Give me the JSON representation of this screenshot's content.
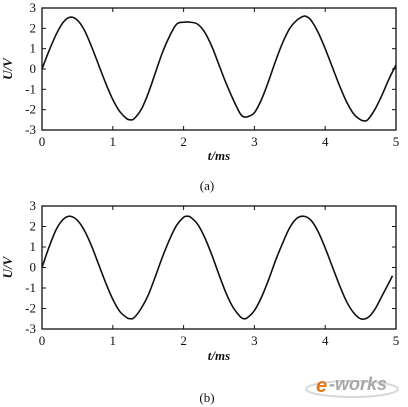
{
  "chart_data": [
    {
      "type": "line",
      "panel_label": "(a)",
      "xlabel": "t/ms",
      "ylabel": "U/V",
      "xlim": [
        0,
        5
      ],
      "ylim": [
        -3,
        3
      ],
      "xticks": [
        "0",
        "1",
        "2",
        "3",
        "4",
        "5"
      ],
      "yticks": [
        "3",
        "2",
        "1",
        "0",
        "-1",
        "-2",
        "-3"
      ],
      "grid": false,
      "series": [
        {
          "x": [
            0,
            0.1,
            0.2,
            0.3,
            0.4,
            0.5,
            0.6,
            0.7,
            0.8,
            0.9,
            1.0,
            1.1,
            1.2,
            1.25,
            1.3,
            1.4,
            1.5,
            1.6,
            1.7,
            1.8,
            1.9,
            2.0,
            2.1,
            2.2,
            2.3,
            2.4,
            2.5,
            2.6,
            2.7,
            2.8,
            2.85,
            2.9,
            3.0,
            3.1,
            3.2,
            3.3,
            3.4,
            3.5,
            3.6,
            3.7,
            3.75,
            3.8,
            3.9,
            4.0,
            4.1,
            4.2,
            4.3,
            4.4,
            4.5,
            4.55,
            4.6,
            4.7,
            4.8,
            4.9,
            5.0
          ],
          "values": [
            0.0,
            0.9,
            1.7,
            2.3,
            2.55,
            2.4,
            1.9,
            1.1,
            0.2,
            -0.7,
            -1.5,
            -2.1,
            -2.45,
            -2.5,
            -2.45,
            -2.0,
            -1.2,
            -0.2,
            0.8,
            1.6,
            2.2,
            2.3,
            2.3,
            2.2,
            1.8,
            1.1,
            0.2,
            -0.7,
            -1.5,
            -2.2,
            -2.35,
            -2.35,
            -2.15,
            -1.5,
            -0.6,
            0.4,
            1.3,
            2.0,
            2.4,
            2.6,
            2.55,
            2.4,
            1.8,
            1.0,
            0.1,
            -0.8,
            -1.6,
            -2.2,
            -2.5,
            -2.55,
            -2.5,
            -2.0,
            -1.3,
            -0.5,
            0.2
          ]
        }
      ]
    },
    {
      "type": "line",
      "panel_label": "(b)",
      "xlabel": "t/ms",
      "ylabel": "U/V",
      "xlim": [
        0,
        5
      ],
      "ylim": [
        -3,
        3
      ],
      "xticks": [
        "0",
        "1",
        "2",
        "3",
        "4",
        "5"
      ],
      "yticks": [
        "3",
        "2",
        "1",
        "0",
        "-1",
        "-2",
        "-3"
      ],
      "grid": false,
      "series": [
        {
          "x": [
            0,
            0.1,
            0.2,
            0.3,
            0.4,
            0.5,
            0.6,
            0.7,
            0.8,
            0.9,
            1.0,
            1.1,
            1.2,
            1.25,
            1.3,
            1.4,
            1.5,
            1.6,
            1.7,
            1.8,
            1.9,
            2.0,
            2.05,
            2.1,
            2.2,
            2.3,
            2.4,
            2.5,
            2.6,
            2.7,
            2.8,
            2.85,
            2.9,
            3.0,
            3.1,
            3.2,
            3.3,
            3.4,
            3.5,
            3.6,
            3.7,
            3.8,
            3.9,
            4.0,
            4.1,
            4.2,
            4.3,
            4.4,
            4.5,
            4.6,
            4.7,
            4.8,
            4.9,
            4.95
          ],
          "values": [
            0.0,
            1.0,
            1.85,
            2.35,
            2.5,
            2.3,
            1.8,
            1.05,
            0.15,
            -0.75,
            -1.55,
            -2.15,
            -2.45,
            -2.5,
            -2.45,
            -2.0,
            -1.35,
            -0.45,
            0.5,
            1.35,
            2.05,
            2.45,
            2.5,
            2.45,
            2.1,
            1.45,
            0.6,
            -0.35,
            -1.25,
            -1.95,
            -2.4,
            -2.5,
            -2.45,
            -2.1,
            -1.45,
            -0.6,
            0.35,
            1.2,
            1.95,
            2.4,
            2.5,
            2.3,
            1.75,
            0.95,
            0.05,
            -0.85,
            -1.65,
            -2.2,
            -2.5,
            -2.45,
            -2.05,
            -1.4,
            -0.75,
            -0.4
          ]
        }
      ]
    }
  ],
  "watermark": {
    "prefix": "e",
    "text": "-works",
    "colors": {
      "prefix": "#e07a1a",
      "text": "#a8a8a8"
    }
  }
}
